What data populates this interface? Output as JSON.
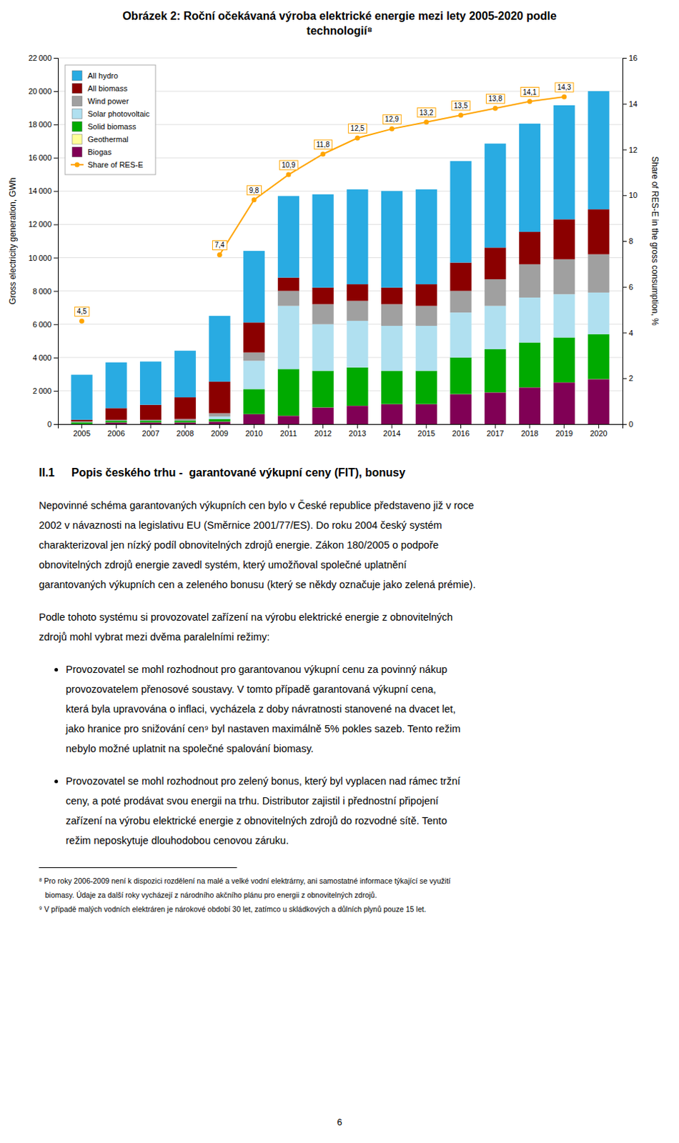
{
  "chart_data": {
    "type": "bar",
    "stacked": true,
    "title": "Obrázek 2: Roční očekávaná výroba elektrické energie mezi lety 2005-2020 podle\ntechnologií⁸",
    "ylabel": "Gross electricity generation, GWh",
    "y2label": "Share of RES-E in the gross consumption, %",
    "categories": [
      "2005",
      "2006",
      "2007",
      "2008",
      "2009",
      "2010",
      "2011",
      "2012",
      "2013",
      "2014",
      "2015",
      "2016",
      "2017",
      "2018",
      "2019",
      "2020"
    ],
    "series": [
      {
        "name": "All hydro",
        "color": "#29ABE2",
        "values": [
          2700,
          2750,
          2600,
          2800,
          3950,
          4300,
          4900,
          5600,
          5700,
          5800,
          5700,
          6100,
          6250,
          6500,
          6850,
          7100
        ]
      },
      {
        "name": "All biomass",
        "color": "#8B0000",
        "values": [
          100,
          700,
          900,
          1300,
          1900,
          1800,
          800,
          1000,
          1000,
          1000,
          1300,
          1700,
          1900,
          1950,
          2400,
          2700
        ]
      },
      {
        "name": "Wind power",
        "color": "#A0A0A0",
        "values": [
          50,
          50,
          50,
          100,
          200,
          500,
          900,
          1200,
          1200,
          1300,
          1200,
          1300,
          1600,
          2000,
          2100,
          2300
        ]
      },
      {
        "name": "Solar photovoltaic",
        "color": "#B0E0F0",
        "values": [
          5,
          5,
          5,
          5,
          150,
          1700,
          3800,
          2800,
          2800,
          2700,
          2700,
          2700,
          2600,
          2700,
          2600,
          2500
        ]
      },
      {
        "name": "Solid biomass",
        "color": "#00AA00",
        "values": [
          100,
          100,
          100,
          100,
          150,
          1500,
          2800,
          2200,
          2300,
          2000,
          2000,
          2200,
          2600,
          2700,
          2700,
          2700
        ]
      },
      {
        "name": "Geothermal",
        "color": "#FFFF99",
        "values": [
          5,
          5,
          5,
          5,
          5,
          5,
          5,
          5,
          5,
          5,
          5,
          5,
          5,
          5,
          5,
          5
        ]
      },
      {
        "name": "Biogas",
        "color": "#800055",
        "values": [
          5,
          100,
          100,
          100,
          150,
          600,
          500,
          1000,
          1100,
          1200,
          1200,
          1800,
          1900,
          2200,
          2500,
          2700
        ]
      },
      {
        "name": "Share of RES-E",
        "type": "line",
        "axis": "y2",
        "color": "#FFA500",
        "marker": "circle",
        "data_labels": true,
        "values": [
          4.5,
          null,
          null,
          null,
          7.4,
          9.8,
          10.9,
          11.8,
          12.5,
          12.9,
          13.2,
          13.5,
          13.8,
          14.1,
          14.3,
          null
        ],
        "value_labels": [
          "4,5",
          null,
          null,
          null,
          "7,4",
          "9,8",
          "10,9",
          "11,8",
          "12,5",
          "12,9",
          "13,2",
          "13,5",
          "13,8",
          "14,1",
          "14,3",
          null
        ]
      }
    ],
    "ylim": [
      0,
      22000
    ],
    "yticks": [
      0,
      {
        "value": 2000,
        "label": "2 000"
      },
      {
        "value": 4000,
        "label": "4 000"
      },
      {
        "value": 6000,
        "label": "6 000"
      },
      {
        "value": 8000,
        "label": "8 000"
      },
      {
        "value": 10000,
        "label": "10 000"
      },
      {
        "value": 12000,
        "label": "12 000"
      },
      {
        "value": 14000,
        "label": "14 000"
      },
      {
        "value": 16000,
        "label": "16 000"
      },
      {
        "value": 18000,
        "label": "18 000"
      },
      {
        "value": 20000,
        "label": "20 000"
      },
      {
        "value": 22000,
        "label": "22 000"
      }
    ],
    "y2lim": [
      0,
      16
    ],
    "y2ticks": [
      0,
      2,
      4,
      6,
      8,
      10,
      12,
      14,
      16
    ],
    "grid": true,
    "legend": "upper left"
  },
  "text": {
    "heading_number": "II.1",
    "heading": "Popis českého trhu -  garantované výkupní ceny (FIT), bonusy",
    "paragraphs": [
      [
        "Nepovinné schéma garantovaných výkupních cen bylo v České republice představeno již v roce",
        "2002 v návaznosti na legislativu EU (Směrnice 2001/77/ES). Do roku 2004 český systém",
        "charakterizoval jen nízký podíl obnovitelných zdrojů energie. Zákon 180/2005 o podpoře",
        "obnovitelných zdrojů energie zavedl systém, který umožňoval společné uplatnění",
        "garantovaných výkupních cen a zeleného bonusu (který se někdy označuje jako zelená prémie)."
      ],
      [
        "Podle tohoto systému si provozovatel zařízení na výrobu elektrické energie z obnovitelných",
        "zdrojů mohl vybrat mezi dvěma paralelními režimy:"
      ]
    ],
    "bullets": [
      [
        "Provozovatel se mohl rozhodnout pro garantovanou výkupní cenu za povinný nákup",
        "provozovatelem přenosové soustavy. V tomto případě garantovaná výkupní cena,",
        "která byla upravována o inflaci, vycházela z doby návratnosti stanovené na dvacet let,",
        "jako hranice pro snižování cen⁹ byl nastaven maximálně 5% pokles sazeb. Tento režim",
        "nebylo možné uplatnit na společné spalování biomasy."
      ],
      [
        "Provozovatel se mohl rozhodnout pro zelený bonus, který byl vyplacen nad rámec tržní",
        "ceny, a poté prodávat svou energii na trhu. Distributor zajistil i přednostní připojení",
        "zařízení na výrobu elektrické energie z obnovitelných zdrojů do rozvodné sítě. Tento",
        "režim neposkytuje dlouhodobou cenovou záruku."
      ]
    ],
    "footnotes": [
      "⁸ Pro roky 2006-2009 není k dispozici rozdělení na malé a velké vodní elektrárny, ani samostatné informace týkající se využití",
      "   biomasy. Údaje za další roky vycházejí z národního akčního plánu pro energii z obnovitelných zdrojů.",
      "⁹ V případě malých vodních elektráren je nárokové období 30 let, zatímco u skládkových a důlních plynů pouze 15 let."
    ],
    "page_number": "6"
  }
}
